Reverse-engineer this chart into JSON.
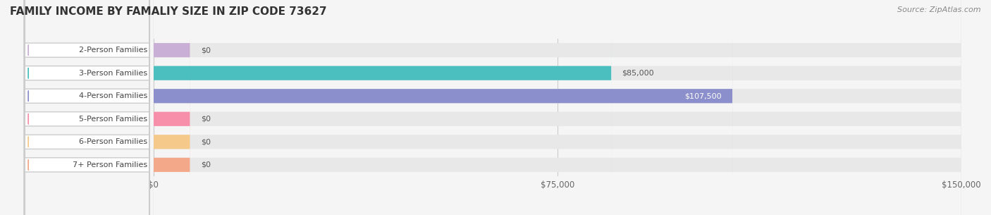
{
  "title": "FAMILY INCOME BY FAMALIY SIZE IN ZIP CODE 73627",
  "source": "Source: ZipAtlas.com",
  "categories": [
    "2-Person Families",
    "3-Person Families",
    "4-Person Families",
    "5-Person Families",
    "6-Person Families",
    "7+ Person Families"
  ],
  "values": [
    0,
    85000,
    107500,
    0,
    0,
    0
  ],
  "bar_colors": [
    "#c9aed6",
    "#4bbfbf",
    "#8b8fcc",
    "#f78faa",
    "#f5c98a",
    "#f4a88a"
  ],
  "label_colors": [
    "#555555",
    "#555555",
    "#ffffff",
    "#555555",
    "#555555",
    "#555555"
  ],
  "value_labels": [
    "$0",
    "$85,000",
    "$107,500",
    "$0",
    "$0",
    "$0"
  ],
  "xlim": [
    0,
    150000
  ],
  "xticks": [
    0,
    75000,
    150000
  ],
  "xtick_labels": [
    "$0",
    "$75,000",
    "$150,000"
  ],
  "bg_color": "#f5f5f5",
  "bar_bg_color": "#e8e8e8",
  "title_fontsize": 11,
  "source_fontsize": 8,
  "tick_fontsize": 8.5,
  "label_fontsize": 8,
  "value_fontsize": 8
}
